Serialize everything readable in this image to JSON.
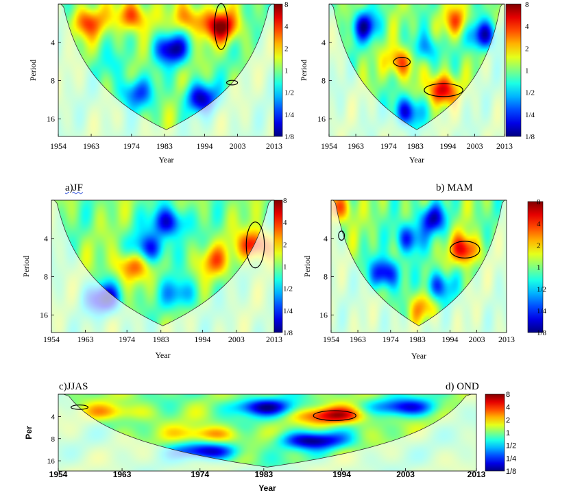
{
  "chart_data": [
    {
      "type": "heatmap",
      "panel_label": "a)JF",
      "xlabel": "Year",
      "ylabel": "Period",
      "x_ticks": [
        "1954",
        "1963",
        "1974",
        "1983",
        "1994",
        "2003",
        "2013"
      ],
      "y_ticks": [
        "4",
        "8",
        "16"
      ],
      "colorbar_ticks": [
        "8",
        "4",
        "2",
        "1",
        "1/2",
        "1/4",
        "1/8"
      ],
      "xlim": [
        1954,
        2013
      ],
      "period_range": [
        2,
        22
      ],
      "significant_regions": [
        {
          "year": 1998.5,
          "period": 3.0,
          "year_halfwidth": 1.8,
          "period_halfspan_log2": 0.6
        },
        {
          "year": 2001.5,
          "period": 8.3,
          "year_halfwidth": 1.5,
          "period_halfspan_log2": 0.06
        }
      ],
      "hotspots": [
        {
          "year": 1962,
          "period": 2.8,
          "value_log2": 1.8
        },
        {
          "year": 1974,
          "period": 2.5,
          "value_log2": 2.0
        },
        {
          "year": 1990,
          "period": 2.6,
          "value_log2": 1.6
        },
        {
          "year": 1998.5,
          "period": 3.0,
          "value_log2": 2.8
        },
        {
          "year": 1985,
          "period": 4.5,
          "value_log2": -2.8
        },
        {
          "year": 1970,
          "period": 6.0,
          "value_log2": -0.5
        },
        {
          "year": 1993,
          "period": 11,
          "value_log2": -2.5
        },
        {
          "year": 1975,
          "period": 10,
          "value_log2": -1.8
        }
      ]
    },
    {
      "type": "heatmap",
      "panel_label": "b) MAM",
      "xlabel": "Year",
      "ylabel": "Period",
      "x_ticks": [
        "1954",
        "1963",
        "1974",
        "1983",
        "1994",
        "2003",
        "2013"
      ],
      "y_ticks": [
        "4",
        "8",
        "16"
      ],
      "colorbar_ticks": [
        "8",
        "4",
        "2",
        "1",
        "1/2",
        "1/4",
        "1/8"
      ],
      "xlim": [
        1954,
        2013
      ],
      "period_range": [
        2,
        22
      ],
      "significant_regions": [
        {
          "year": 1978.5,
          "period": 5.7,
          "year_halfwidth": 2.8,
          "period_halfspan_log2": 0.12
        },
        {
          "year": 1992.5,
          "period": 9.5,
          "year_halfwidth": 6.5,
          "period_halfspan_log2": 0.17
        }
      ],
      "hotspots": [
        {
          "year": 1978,
          "period": 5.7,
          "value_log2": 2.0
        },
        {
          "year": 1992,
          "period": 9.5,
          "value_log2": 2.8
        },
        {
          "year": 1997,
          "period": 2.7,
          "value_log2": 1.6
        },
        {
          "year": 1966,
          "period": 3.0,
          "value_log2": -2.5
        },
        {
          "year": 2006,
          "period": 3.5,
          "value_log2": -2.8
        },
        {
          "year": 1987,
          "period": 4.5,
          "value_log2": -1.5
        },
        {
          "year": 1980,
          "period": 14,
          "value_log2": -2.5
        }
      ]
    },
    {
      "type": "heatmap",
      "panel_label": "c)JJAS",
      "xlabel": "Year",
      "ylabel": "Period",
      "x_ticks": [
        "1954",
        "1963",
        "1974",
        "1983",
        "1994",
        "2003",
        "2013"
      ],
      "y_ticks": [
        "4",
        "8",
        "16"
      ],
      "colorbar_ticks": [
        "8",
        "4",
        "2",
        "1",
        "1/2",
        "1/4",
        "1/8"
      ],
      "xlim": [
        1954,
        2013
      ],
      "period_range": [
        2,
        22
      ],
      "significant_regions": [
        {
          "year": 2008.0,
          "period": 4.5,
          "year_halfwidth": 2.4,
          "period_halfspan_log2": 0.6
        }
      ],
      "hotspots": [
        {
          "year": 2008,
          "period": 4.5,
          "value_log2": 2.5
        },
        {
          "year": 1975,
          "period": 6.5,
          "value_log2": 1.8
        },
        {
          "year": 1997,
          "period": 6.0,
          "value_log2": 1.4
        },
        {
          "year": 1985,
          "period": 3.0,
          "value_log2": -2.5
        },
        {
          "year": 1988,
          "period": 11,
          "value_log2": -1.5
        },
        {
          "year": 1968,
          "period": 12,
          "value_log2": -2.8
        },
        {
          "year": 1980,
          "period": 4.8,
          "value_log2": -2.2
        }
      ]
    },
    {
      "type": "heatmap",
      "panel_label": "d) OND",
      "xlabel": "Year",
      "ylabel": "Period",
      "x_ticks": [
        "1954",
        "1963",
        "1974",
        "1983",
        "1994",
        "2003",
        "2013"
      ],
      "y_ticks": [
        "4",
        "8",
        "16"
      ],
      "colorbar_ticks": [
        "8",
        "4",
        "2",
        "1",
        "1/2",
        "1/4",
        "1/8"
      ],
      "xlim": [
        1954,
        2013
      ],
      "period_range": [
        2,
        22
      ],
      "significant_regions": [
        {
          "year": 1957.5,
          "period": 3.8,
          "year_halfwidth": 1.0,
          "period_halfspan_log2": 0.12
        },
        {
          "year": 1999.0,
          "period": 4.9,
          "year_halfwidth": 5.0,
          "period_halfspan_log2": 0.22
        }
      ],
      "hotspots": [
        {
          "year": 1999,
          "period": 4.9,
          "value_log2": 2.5
        },
        {
          "year": 1956,
          "period": 2.3,
          "value_log2": 2.0
        },
        {
          "year": 1980,
          "period": 4.0,
          "value_log2": -2.2
        },
        {
          "year": 1988,
          "period": 2.8,
          "value_log2": -2.5
        },
        {
          "year": 1972,
          "period": 7.5,
          "value_log2": -2.8
        },
        {
          "year": 1990,
          "period": 9.5,
          "value_log2": -2.0
        },
        {
          "year": 1985,
          "period": 14,
          "value_log2": 1.2
        }
      ]
    },
    {
      "type": "heatmap",
      "panel_label": "",
      "xlabel": "Year",
      "ylabel": "Per",
      "x_ticks": [
        "1954",
        "1963",
        "1974",
        "1983",
        "1994",
        "2003",
        "2013"
      ],
      "y_ticks": [
        "4",
        "8",
        "16"
      ],
      "colorbar_ticks": [
        "8",
        "4",
        "2",
        "1",
        "1/2",
        "1/4",
        "1/8"
      ],
      "xlim": [
        1954,
        2013
      ],
      "period_range": [
        2,
        22
      ],
      "significant_regions": [
        {
          "year": 1957.0,
          "period": 3.0,
          "year_halfwidth": 1.2,
          "period_halfspan_log2": 0.1
        },
        {
          "year": 1993.0,
          "period": 3.9,
          "year_halfwidth": 3.0,
          "period_halfspan_log2": 0.22
        }
      ],
      "hotspots": [
        {
          "year": 1993,
          "period": 3.9,
          "value_log2": 2.6
        },
        {
          "year": 1975,
          "period": 7.0,
          "value_log2": 1.5
        },
        {
          "year": 1962,
          "period": 3.5,
          "value_log2": 1.2
        },
        {
          "year": 1983,
          "period": 3.0,
          "value_log2": -2.5
        },
        {
          "year": 1990,
          "period": 8.5,
          "value_log2": -2.8
        },
        {
          "year": 1975,
          "period": 12,
          "value_log2": -2.5
        },
        {
          "year": 2003,
          "period": 3.0,
          "value_log2": -2.2
        }
      ]
    }
  ]
}
